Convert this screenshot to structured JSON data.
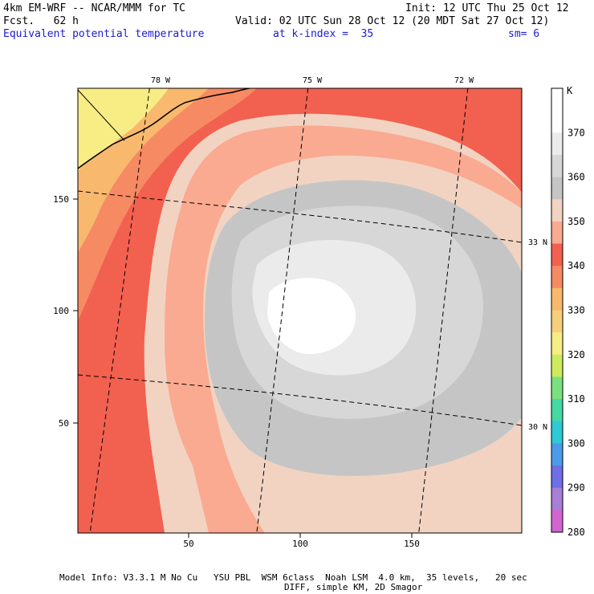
{
  "header": {
    "model_line": "4km EM-WRF -- NCAR/MMM for TC",
    "init_line": "Init: 12 UTC Thu 25 Oct 12",
    "fcst_line": "Fcst.   62 h",
    "valid_line": "Valid: 02 UTC Sun 28 Oct 12 (20 MDT Sat 27 Oct 12)",
    "field_name": "Equivalent potential temperature",
    "k_index": "at k-index =  35",
    "smoothing": "sm= 6"
  },
  "axes": {
    "x_ticks": [
      "50",
      "100",
      "150"
    ],
    "y_ticks": [
      "150",
      "100",
      "50"
    ],
    "lon_labels": [
      "78 W",
      "75 W",
      "72 W"
    ],
    "lat_labels": [
      "33 N",
      "30 N"
    ]
  },
  "colorbar": {
    "unit": "K",
    "levels": [
      {
        "label": "",
        "color": "#ffffff"
      },
      {
        "label": "370",
        "color": "#ffffff"
      },
      {
        "label": "",
        "color": "#ebebeb"
      },
      {
        "label": "360",
        "color": "#d7d7d7"
      },
      {
        "label": "",
        "color": "#c5c5c5"
      },
      {
        "label": "350",
        "color": "#f2d3c2"
      },
      {
        "label": "",
        "color": "#f9aa91"
      },
      {
        "label": "340",
        "color": "#f26050"
      },
      {
        "label": "",
        "color": "#f68a62"
      },
      {
        "label": "330",
        "color": "#f8b86e"
      },
      {
        "label": "",
        "color": "#f7cf7c"
      },
      {
        "label": "320",
        "color": "#f8ed84"
      },
      {
        "label": "",
        "color": "#ccec5e"
      },
      {
        "label": "310",
        "color": "#7be07e"
      },
      {
        "label": "",
        "color": "#44d8a4"
      },
      {
        "label": "300",
        "color": "#2ecad6"
      },
      {
        "label": "",
        "color": "#4a9be8"
      },
      {
        "label": "290",
        "color": "#6e6ee6"
      },
      {
        "label": "",
        "color": "#a87ed6"
      },
      {
        "label": "280",
        "color": "#d264d2"
      }
    ]
  },
  "footer": {
    "line1": "Model Info: V3.3.1 M No Cu   YSU PBL  WSM 6class  Noah LSM  4.0 km,  35 levels,   20 sec",
    "line2": "DIFF, simple KM, 2D Smagor"
  },
  "colors": {
    "fill_ocean_outer": "#f26050",
    "fill_coast_band": "#f68a62",
    "fill_land_warm": "#f8b86e",
    "fill_land": "#f8ed84",
    "fill_350": "#f2d3c2",
    "fill_345": "#f9aa91",
    "fill_355": "#c5c5c5",
    "fill_360": "#d7d7d7",
    "fill_365": "#ebebeb",
    "fill_370": "#ffffff"
  }
}
